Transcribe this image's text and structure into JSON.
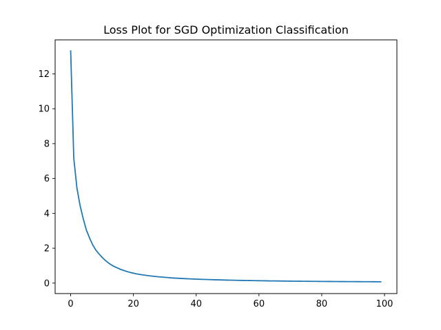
{
  "chart_data": {
    "type": "line",
    "title": "Loss Plot for SGD Optimization Classification",
    "xlabel": "",
    "ylabel": "",
    "xlim": [
      -4.95,
      103.95
    ],
    "ylim": [
      -0.6,
      13.95
    ],
    "xticks": [
      0,
      20,
      40,
      60,
      80,
      100
    ],
    "yticks": [
      0,
      2,
      4,
      6,
      8,
      10,
      12
    ],
    "grid": false,
    "legend": "none",
    "line_color": "#1f77b4",
    "series": [
      {
        "x": [
          0,
          1,
          2,
          3,
          4,
          5,
          6,
          7,
          8,
          9,
          10,
          11,
          12,
          13,
          14,
          15,
          16,
          17,
          18,
          19,
          20,
          21,
          22,
          23,
          24,
          25,
          26,
          27,
          28,
          29,
          30,
          31,
          32,
          33,
          34,
          35,
          36,
          37,
          38,
          39,
          40,
          41,
          42,
          43,
          44,
          45,
          46,
          47,
          48,
          49,
          50,
          51,
          52,
          53,
          54,
          55,
          56,
          57,
          58,
          59,
          60,
          61,
          62,
          63,
          64,
          65,
          66,
          67,
          68,
          69,
          70,
          71,
          72,
          73,
          74,
          75,
          76,
          77,
          78,
          79,
          80,
          81,
          82,
          83,
          84,
          85,
          86,
          87,
          88,
          89,
          90,
          91,
          92,
          93,
          94,
          95,
          96,
          97,
          98,
          99
        ],
        "values": [
          13.35,
          7.15,
          5.45,
          4.45,
          3.7,
          3.05,
          2.6,
          2.2,
          1.9,
          1.68,
          1.48,
          1.31,
          1.16,
          1.04,
          0.94,
          0.86,
          0.78,
          0.72,
          0.66,
          0.61,
          0.57,
          0.53,
          0.5,
          0.47,
          0.445,
          0.42,
          0.4,
          0.38,
          0.36,
          0.345,
          0.33,
          0.315,
          0.3,
          0.29,
          0.28,
          0.27,
          0.26,
          0.25,
          0.243,
          0.235,
          0.228,
          0.221,
          0.214,
          0.208,
          0.202,
          0.196,
          0.191,
          0.186,
          0.181,
          0.176,
          0.172,
          0.168,
          0.164,
          0.16,
          0.156,
          0.152,
          0.149,
          0.146,
          0.143,
          0.14,
          0.137,
          0.134,
          0.131,
          0.128,
          0.126,
          0.124,
          0.121,
          0.119,
          0.117,
          0.115,
          0.113,
          0.111,
          0.109,
          0.107,
          0.105,
          0.104,
          0.102,
          0.1,
          0.099,
          0.097,
          0.096,
          0.094,
          0.093,
          0.092,
          0.09,
          0.089,
          0.088,
          0.087,
          0.086,
          0.085,
          0.084,
          0.083,
          0.082,
          0.081,
          0.08,
          0.079,
          0.078,
          0.077,
          0.076,
          0.075
        ]
      }
    ]
  }
}
